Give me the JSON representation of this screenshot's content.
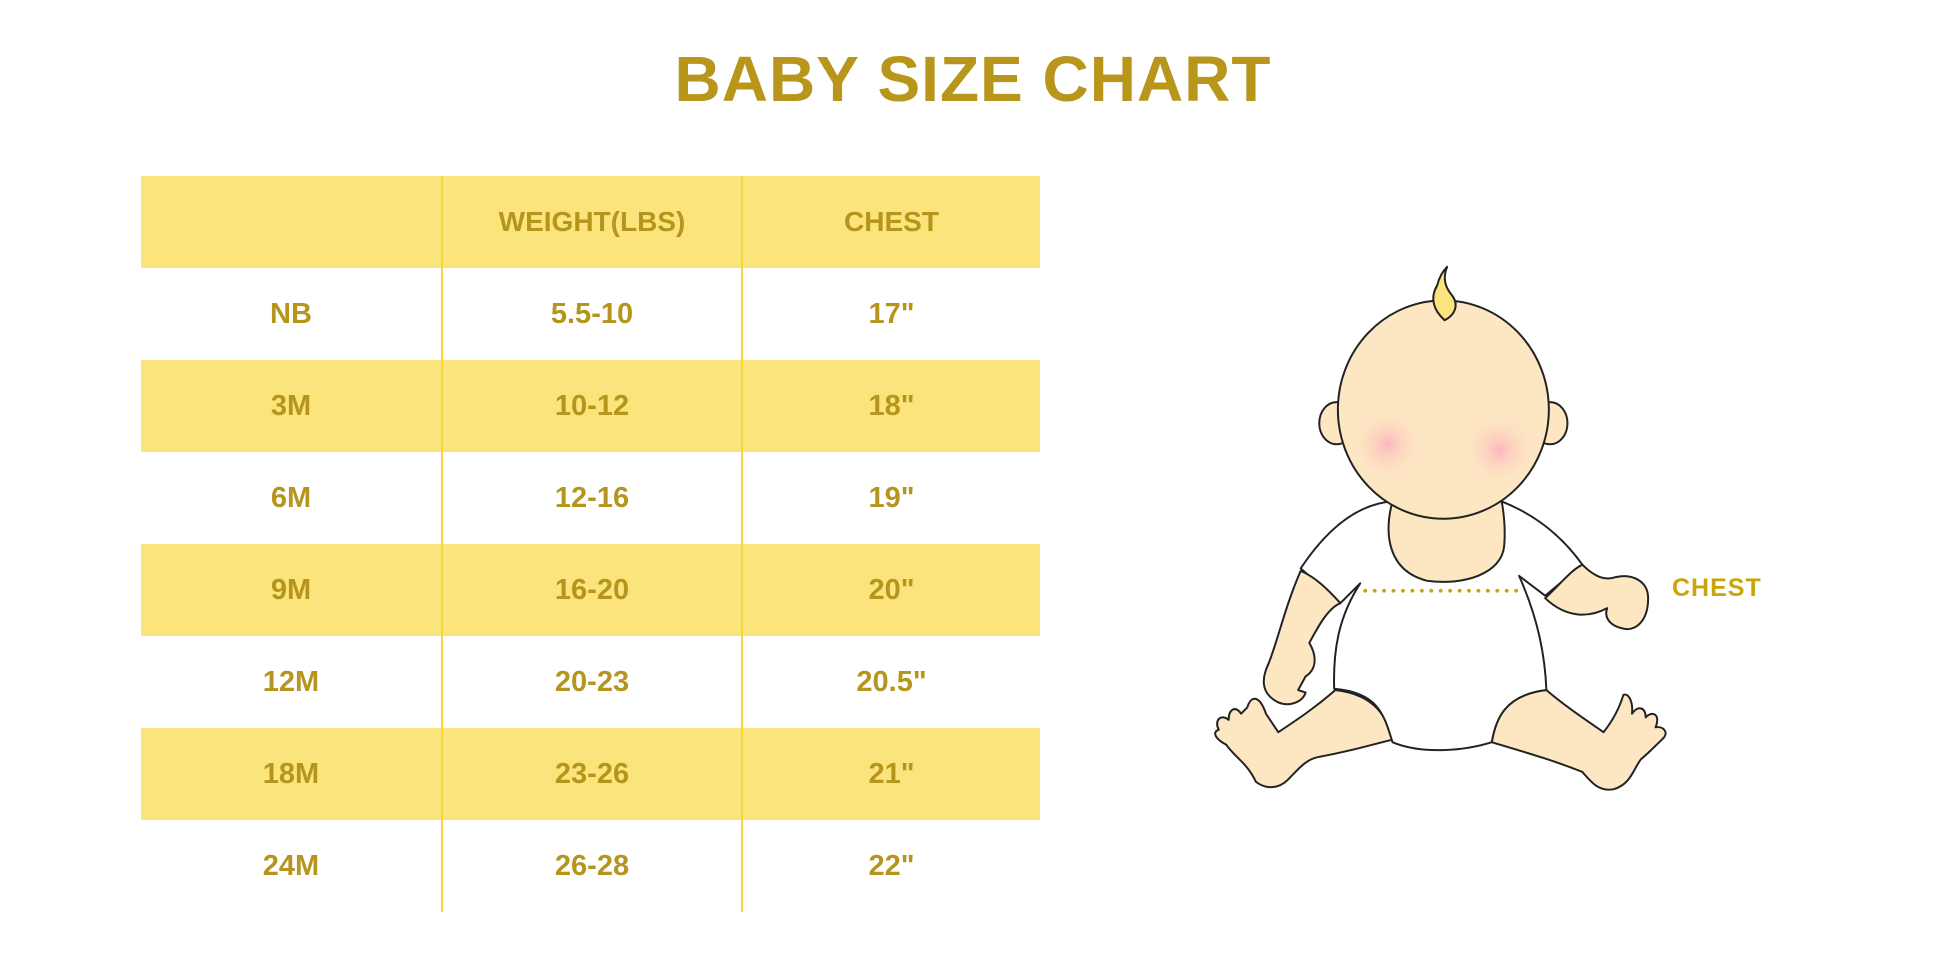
{
  "title": "BABY SIZE CHART",
  "table": {
    "headers": [
      "",
      "WEIGHT(LBS)",
      "CHEST"
    ],
    "rows": [
      {
        "size": "NB",
        "weight": "5.5-10",
        "chest": "17\""
      },
      {
        "size": "3M",
        "weight": "10-12",
        "chest": "18\""
      },
      {
        "size": "6M",
        "weight": "12-16",
        "chest": "19\""
      },
      {
        "size": "9M",
        "weight": "16-20",
        "chest": "20\""
      },
      {
        "size": "12M",
        "weight": "20-23",
        "chest": "20.5\""
      },
      {
        "size": "18M",
        "weight": "23-26",
        "chest": "21\""
      },
      {
        "size": "24M",
        "weight": "26-28",
        "chest": "22\""
      }
    ]
  },
  "illustration": {
    "chest_label": "CHEST"
  },
  "colors": {
    "text": "#b5951c",
    "band": "#fbe47c",
    "divider": "#f7d73c",
    "skin": "#fde6c2",
    "blush": "#fbb6bd"
  }
}
